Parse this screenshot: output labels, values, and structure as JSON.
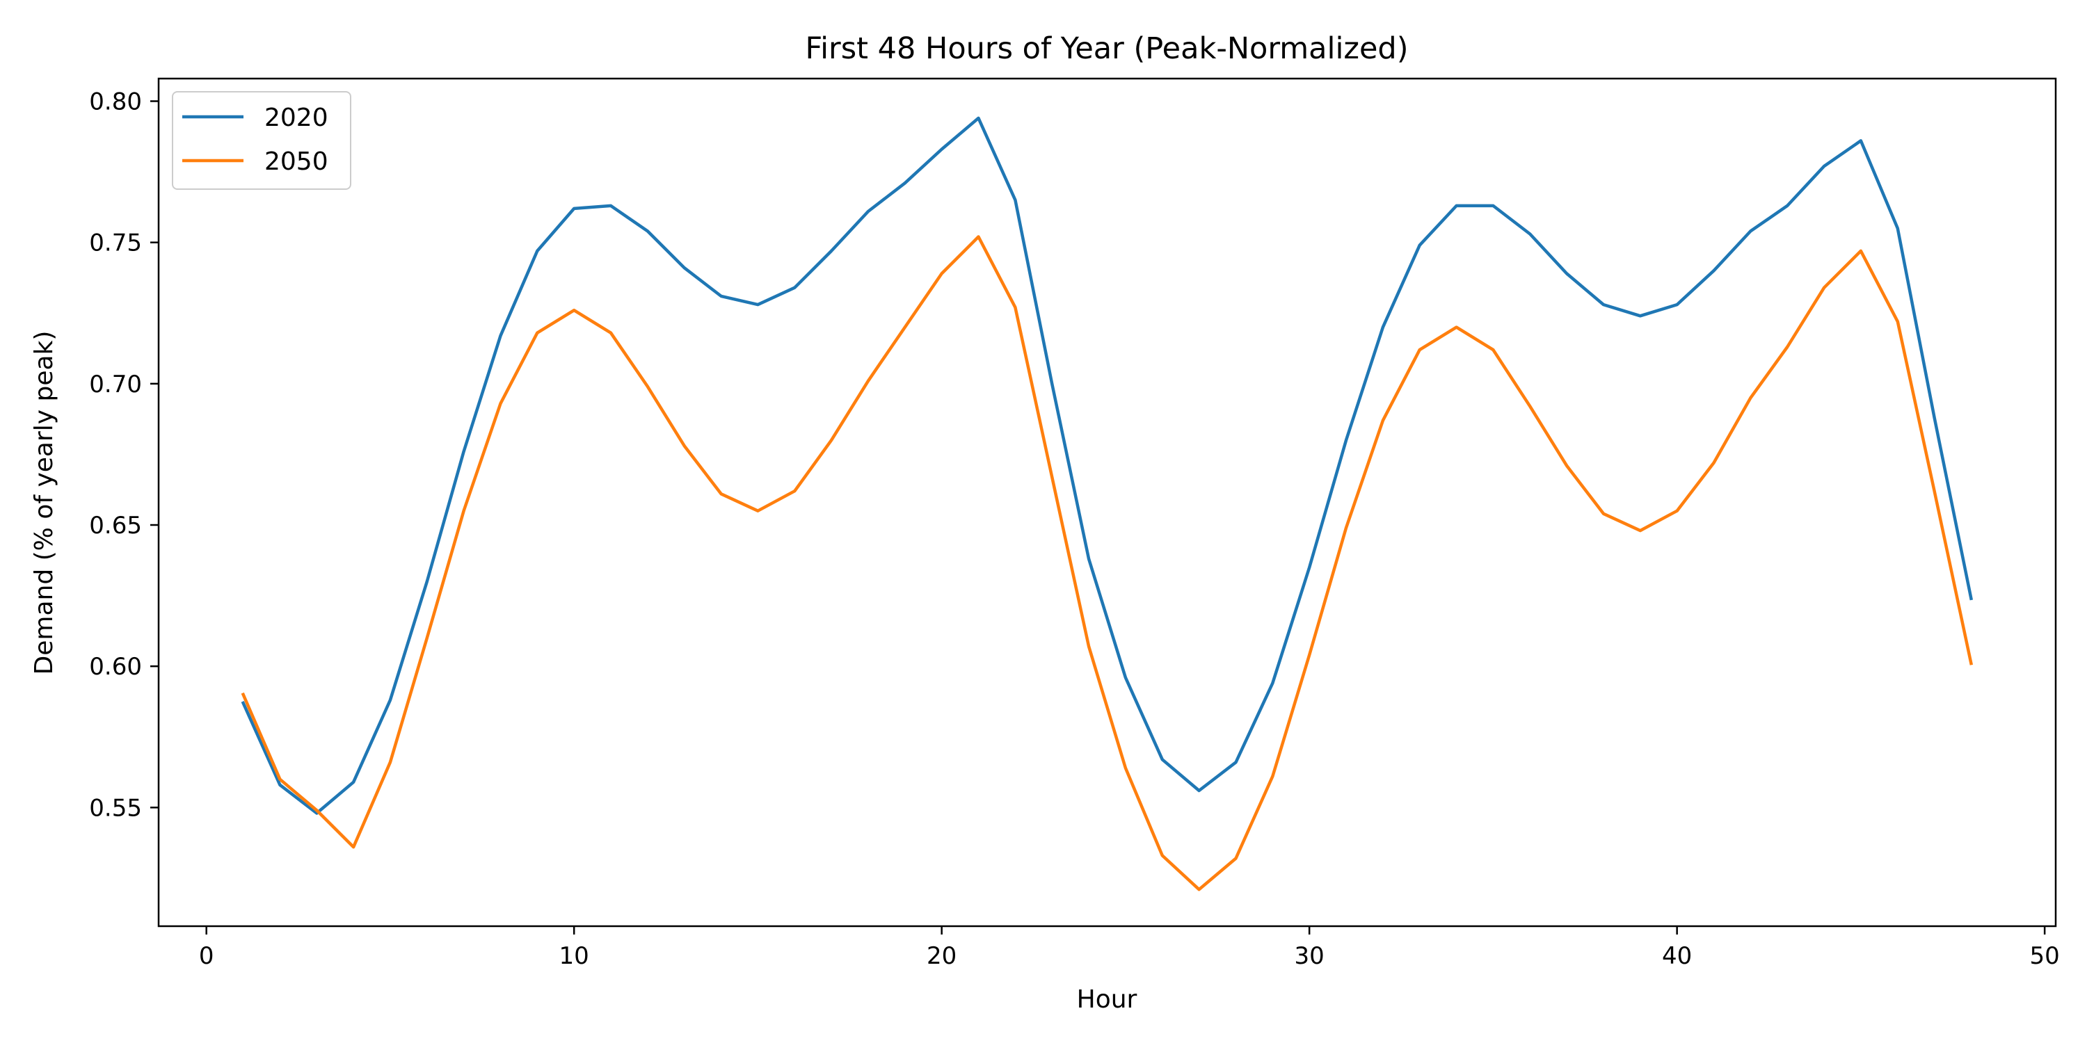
{
  "chart_data": {
    "type": "line",
    "title": "First 48 Hours of Year (Peak-Normalized)",
    "xlabel": "Hour",
    "ylabel": "Demand (% of yearly peak)",
    "xlim": [
      -1.3,
      50.3
    ],
    "ylim": [
      0.508,
      0.808
    ],
    "xticks": [
      0,
      10,
      20,
      30,
      40,
      50
    ],
    "yticks": [
      0.55,
      0.6,
      0.65,
      0.7,
      0.75,
      0.8
    ],
    "ytick_labels": [
      "0.55",
      "0.60",
      "0.65",
      "0.70",
      "0.75",
      "0.80"
    ],
    "grid": false,
    "legend_position": "top-left",
    "x": [
      1,
      2,
      3,
      4,
      5,
      6,
      7,
      8,
      9,
      10,
      11,
      12,
      13,
      14,
      15,
      16,
      17,
      18,
      19,
      20,
      21,
      22,
      23,
      24,
      25,
      26,
      27,
      28,
      29,
      30,
      31,
      32,
      33,
      34,
      35,
      36,
      37,
      38,
      39,
      40,
      41,
      42,
      43,
      44,
      45,
      46,
      47,
      48
    ],
    "series": [
      {
        "name": "2020",
        "color": "#1f77b4",
        "values": [
          0.587,
          0.558,
          0.548,
          0.559,
          0.588,
          0.63,
          0.676,
          0.717,
          0.747,
          0.762,
          0.763,
          0.754,
          0.741,
          0.731,
          0.728,
          0.734,
          0.747,
          0.761,
          0.771,
          0.783,
          0.794,
          0.765,
          0.7,
          0.638,
          0.596,
          0.567,
          0.556,
          0.566,
          0.594,
          0.635,
          0.68,
          0.72,
          0.749,
          0.763,
          0.763,
          0.753,
          0.739,
          0.728,
          0.724,
          0.728,
          0.74,
          0.754,
          0.763,
          0.777,
          0.786,
          0.755,
          0.688,
          0.624
        ]
      },
      {
        "name": "2050",
        "color": "#ff7f0e",
        "values": [
          0.59,
          0.56,
          0.549,
          0.536,
          0.566,
          0.61,
          0.655,
          0.693,
          0.718,
          0.726,
          0.718,
          0.699,
          0.678,
          0.661,
          0.655,
          0.662,
          0.68,
          0.701,
          0.72,
          0.739,
          0.752,
          0.727,
          0.667,
          0.607,
          0.564,
          0.533,
          0.521,
          0.532,
          0.561,
          0.604,
          0.649,
          0.687,
          0.712,
          0.72,
          0.712,
          0.692,
          0.671,
          0.654,
          0.648,
          0.655,
          0.672,
          0.695,
          0.713,
          0.734,
          0.747,
          0.722,
          0.662,
          0.601
        ]
      }
    ]
  }
}
